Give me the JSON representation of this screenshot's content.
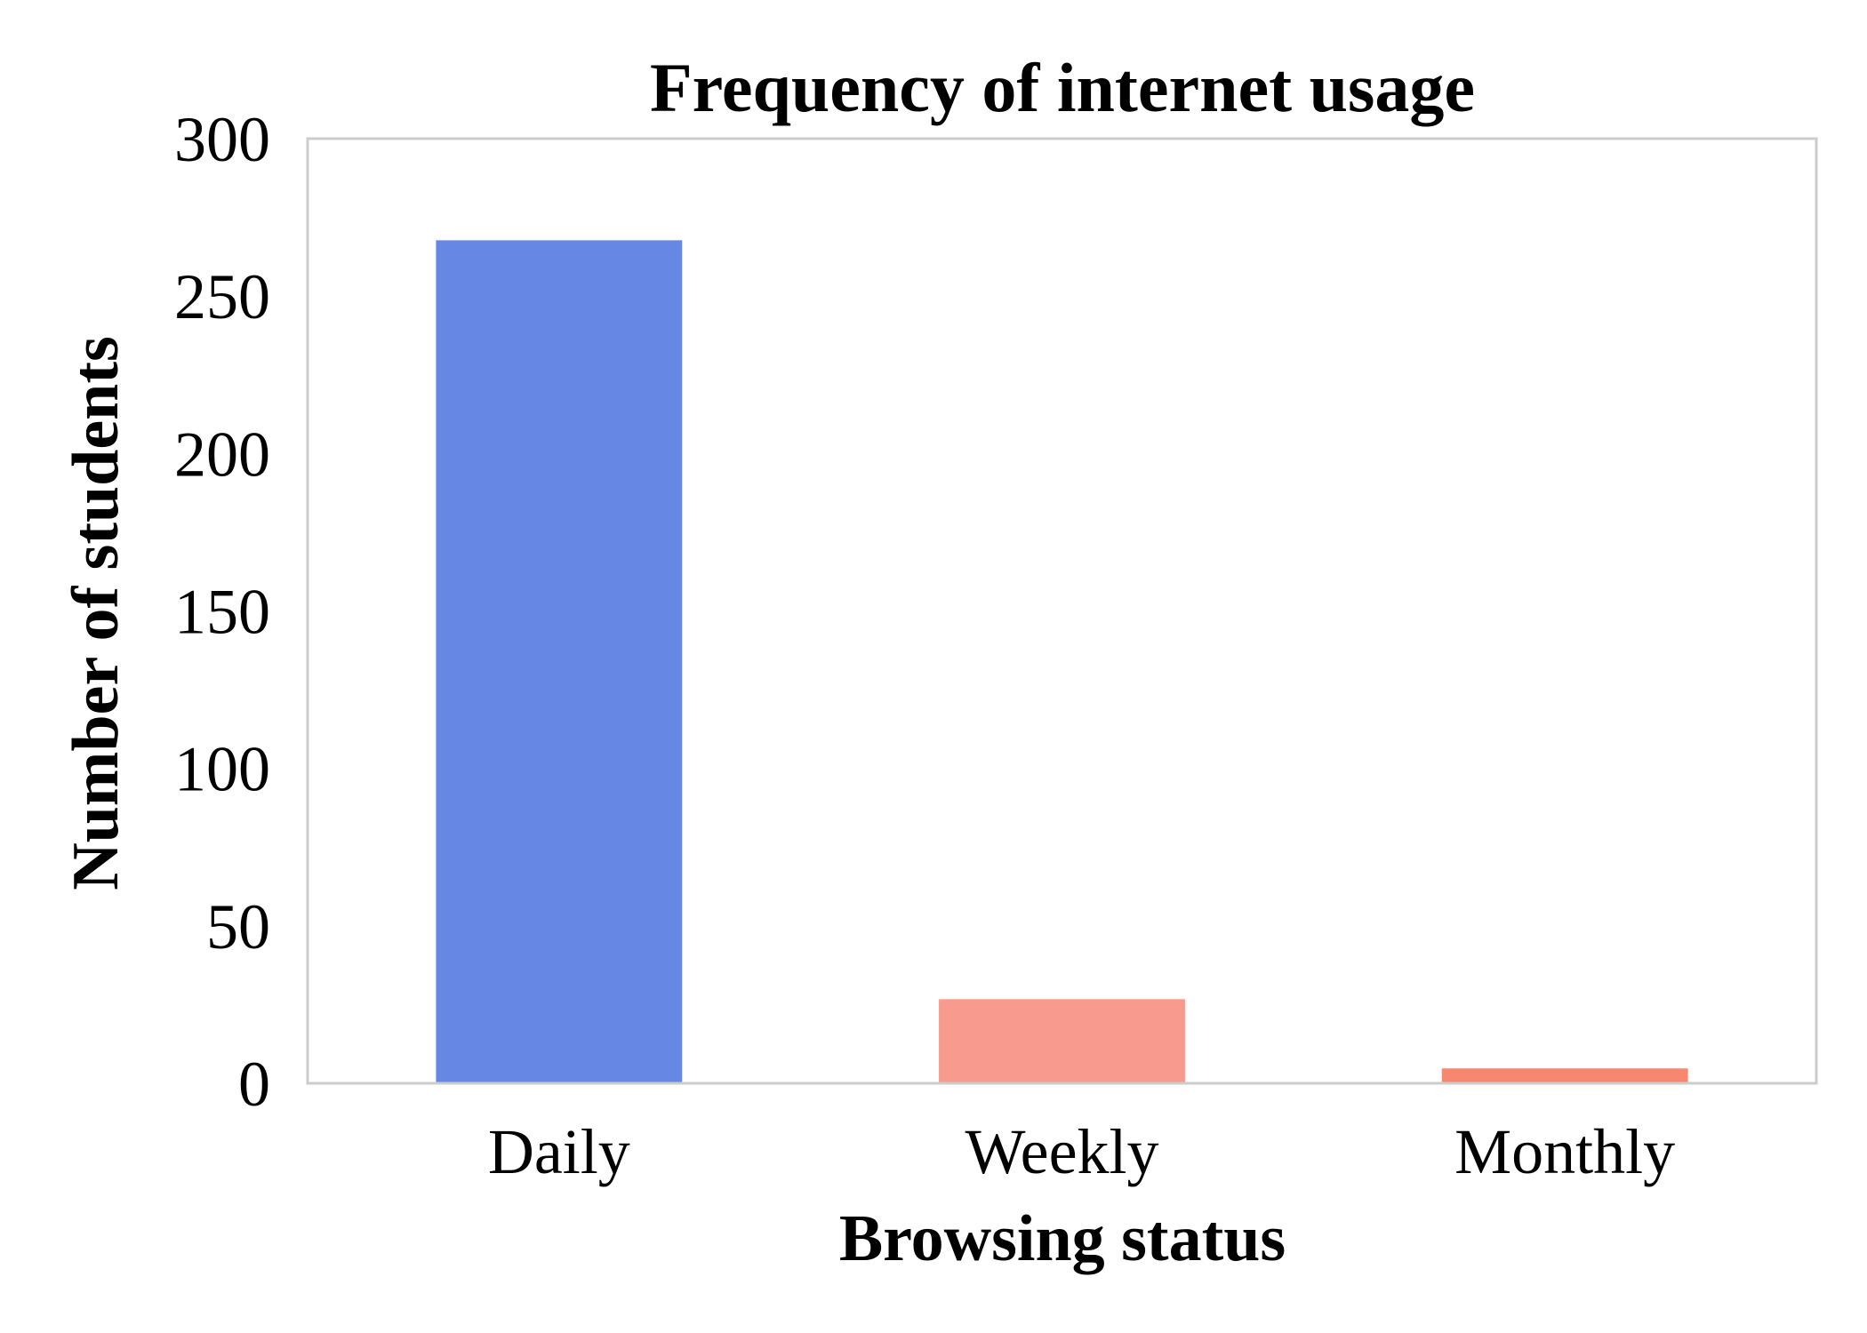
{
  "chart_data": {
    "type": "bar",
    "title": "Frequency of internet usage",
    "xlabel": "Browsing status",
    "ylabel": "Number of students",
    "categories": [
      "Daily",
      "Weekly",
      "Monthly"
    ],
    "values": [
      268,
      27,
      5
    ],
    "ylim": [
      0,
      300
    ],
    "yticks": [
      0,
      50,
      100,
      150,
      200,
      250,
      300
    ],
    "grid": false,
    "legend": "none",
    "bar_colors": [
      "#6787e5",
      "#f89a8e",
      "#f7876f"
    ],
    "frame_color": "#cccccc"
  }
}
